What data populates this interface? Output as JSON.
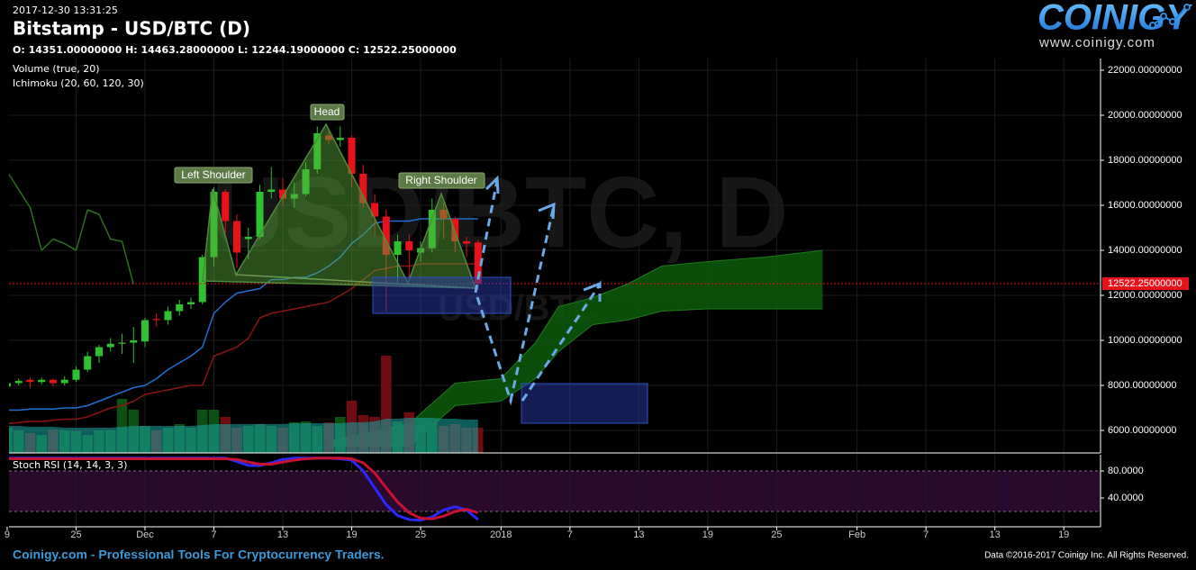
{
  "header": {
    "timestamp": "2017-12-30 13:31:25",
    "title": "Bitstamp - USD/BTC (D)",
    "ohlc": "O: 14351.00000000 H: 14463.28000000 L: 12244.19000000 C: 12522.25000000",
    "indicators": [
      "Volume (true, 20)",
      "Ichimoku (20, 60, 120, 30)"
    ],
    "watermark": "USD/BTC, D",
    "watermark_small": "USD/BTC"
  },
  "logo": {
    "name": "COINIGY",
    "url": "www.coinigy.com"
  },
  "annotations": [
    "Left Shoulder",
    "Head",
    "Right Shoulder"
  ],
  "footer": {
    "left": "Coinigy.com - Professional Tools For Cryptocurrency Traders.",
    "right": "Data ©2016-2017 Coinigy Inc. All Rights Reserved."
  },
  "chart_data": [
    {
      "type": "candlestick",
      "x": [
        0,
        1,
        2,
        3,
        4,
        5,
        6,
        7,
        8,
        9,
        10,
        11,
        12,
        13,
        14,
        15,
        16,
        17,
        18,
        19,
        20,
        21,
        22,
        23,
        24,
        25,
        26,
        27,
        28,
        29,
        30,
        31,
        32,
        33,
        34,
        35,
        36,
        37,
        38,
        39,
        40,
        41
      ],
      "open": [
        7950,
        8100,
        8250,
        8150,
        8250,
        8100,
        8250,
        8700,
        9300,
        9700,
        9850,
        9900,
        9950,
        10950,
        10900,
        11300,
        11600,
        11700,
        13700,
        16600,
        15300,
        14500,
        14600,
        16600,
        16700,
        16300,
        16500,
        17600,
        19100,
        18900,
        19000,
        17400,
        16100,
        15500,
        13800,
        14400,
        13900,
        14100,
        15800,
        15400,
        14400,
        14351
      ],
      "high": [
        8200,
        8300,
        8350,
        8350,
        8300,
        8400,
        8850,
        9500,
        9800,
        10100,
        10300,
        10600,
        11000,
        11200,
        11500,
        11800,
        11900,
        13800,
        16800,
        16700,
        15600,
        15000,
        16900,
        17700,
        17200,
        17000,
        17900,
        19500,
        19300,
        19500,
        19100,
        17800,
        16500,
        15800,
        14700,
        14700,
        14400,
        16300,
        16100,
        15500,
        14600,
        14463.28
      ],
      "low": [
        7850,
        8000,
        7900,
        8050,
        7950,
        8000,
        8150,
        8600,
        9000,
        9500,
        9400,
        9000,
        9700,
        10600,
        10700,
        11100,
        11400,
        11600,
        13300,
        14800,
        13200,
        13600,
        14500,
        16300,
        16000,
        15900,
        16400,
        17400,
        18700,
        18600,
        16800,
        15900,
        14600,
        11300,
        12500,
        12700,
        13500,
        13900,
        14500,
        13900,
        13700,
        12244.19
      ],
      "close": [
        8100,
        8200,
        8150,
        8250,
        8100,
        8250,
        8700,
        9300,
        9700,
        9850,
        9900,
        10000,
        10900,
        10900,
        11300,
        11600,
        11700,
        13700,
        16600,
        15300,
        13900,
        14600,
        16600,
        16700,
        16300,
        16500,
        17600,
        19200,
        18900,
        19000,
        17400,
        16100,
        15500,
        13800,
        14400,
        14000,
        14100,
        15800,
        15400,
        14400,
        14300,
        12522.25
      ],
      "up_color": "#2fc12f",
      "down_color": "#e8121b",
      "volume": [
        28,
        25,
        22,
        20,
        26,
        25,
        24,
        20,
        25,
        25,
        60,
        48,
        30,
        25,
        28,
        32,
        28,
        48,
        48,
        40,
        28,
        30,
        32,
        30,
        28,
        34,
        35,
        30,
        34,
        40,
        58,
        42,
        40,
        108,
        35,
        45,
        30,
        33,
        30,
        32,
        28,
        28
      ],
      "volume_up_color": "#0e5a14",
      "volume_down_color": "#7a0d14",
      "volume_ma": {
        "color": "#1aa5a5",
        "values": [
          30,
          30,
          29,
          29,
          29,
          28,
          28,
          28,
          28,
          28,
          29,
          30,
          30,
          30,
          30,
          30,
          30,
          31,
          32,
          32,
          32,
          32,
          32,
          32,
          32,
          33,
          33,
          33,
          33,
          33,
          34,
          34,
          35,
          38,
          38,
          39,
          39,
          39,
          38,
          38,
          37,
          37
        ]
      },
      "lines": [
        {
          "color": "#1f6fd1",
          "values": [
            6900,
            6900,
            6950,
            6950,
            6950,
            7000,
            7000,
            7100,
            7300,
            7500,
            7700,
            7900,
            8000,
            8300,
            8700,
            9000,
            9300,
            9700,
            11200,
            11700,
            12100,
            12200,
            12300,
            12700,
            12700,
            12800,
            12800,
            13000,
            13300,
            13700,
            14300,
            14700,
            15200,
            15300,
            15300,
            15300,
            15400,
            15400,
            15400,
            15400,
            15400,
            15400
          ]
        },
        {
          "color": "#8a1414",
          "values": [
            6300,
            6350,
            6400,
            6400,
            6450,
            6500,
            6500,
            6600,
            6800,
            7000,
            7100,
            7300,
            7600,
            7700,
            7800,
            7900,
            8000,
            8000,
            9300,
            9500,
            9700,
            10100,
            11000,
            11200,
            11300,
            11400,
            11500,
            11600,
            11700,
            12000,
            12300,
            12700,
            13100,
            13200,
            13300,
            13300,
            13400,
            13400,
            13400,
            13400,
            13400,
            13400
          ]
        },
        {
          "color": "#2d6e1f",
          "values": [
            17500,
            16700,
            15900,
            14000,
            14500,
            14300,
            14000,
            15800,
            15600,
            14500,
            14400,
            12500,
            null,
            null,
            null,
            null,
            null,
            null,
            null,
            null,
            null,
            null,
            null,
            null,
            null,
            null,
            null,
            null,
            null,
            null,
            null,
            null,
            null,
            null,
            null,
            null,
            null,
            null,
            null,
            null,
            null,
            null
          ]
        }
      ],
      "cloud": {
        "color": "#0c5c0c",
        "x": [
          28,
          35,
          39,
          43,
          46,
          48,
          51,
          54,
          57,
          61,
          66,
          71
        ],
        "upper": [
          5500,
          6300,
          8100,
          8300,
          9900,
          11500,
          11900,
          12500,
          13300,
          13500,
          13700,
          14000
        ],
        "lower": [
          5300,
          5300,
          7100,
          7300,
          8300,
          9500,
          10700,
          10900,
          11300,
          11400,
          11400,
          11400
        ]
      },
      "last_price": {
        "value": 12522.25,
        "label": "12522.25000000",
        "color": "#e8121b"
      },
      "xlim": [
        0.16,
        95.2
      ],
      "ylim": [
        5000,
        22520
      ],
      "yticks": [
        {
          "value": 6000,
          "label": "6000.00000000"
        },
        {
          "value": 8000,
          "label": "8000.00000000"
        },
        {
          "value": 10000,
          "label": "10000.00000000"
        },
        {
          "value": 12000,
          "label": "12000.00000000"
        },
        {
          "value": 14000,
          "label": "14000.00000000"
        },
        {
          "value": 16000,
          "label": "16000.00000000"
        },
        {
          "value": 18000,
          "label": "18000.00000000"
        },
        {
          "value": 20000,
          "label": "20000.00000000"
        },
        {
          "value": 22000,
          "label": "22000.00000000"
        }
      ],
      "grid": true
    },
    {
      "type": "line",
      "title": "Stoch RSI (14, 14, 3, 3)",
      "x": [
        0,
        1,
        2,
        3,
        4,
        5,
        6,
        7,
        8,
        9,
        10,
        11,
        12,
        13,
        14,
        15,
        16,
        17,
        18,
        19,
        20,
        21,
        22,
        23,
        24,
        25,
        26,
        27,
        28,
        29,
        30,
        31,
        32,
        33,
        34,
        35,
        36,
        37,
        38,
        39,
        40,
        41
      ],
      "series": [
        {
          "color": "#2a2aff",
          "values": [
            99,
            99,
            99,
            99,
            99,
            99,
            99,
            99,
            99,
            99,
            99,
            99,
            99,
            99,
            99,
            99,
            99,
            99,
            99,
            99,
            94,
            88,
            88,
            92,
            97,
            99,
            99,
            99,
            99,
            98,
            96,
            80,
            55,
            30,
            14,
            8,
            7,
            12,
            22,
            27,
            22,
            8
          ]
        },
        {
          "color": "#c81030",
          "values": [
            98,
            98,
            98,
            98,
            98,
            98,
            98,
            98,
            98,
            98,
            98,
            98,
            98,
            98,
            98,
            98,
            98,
            98,
            98,
            98,
            97,
            93,
            90,
            90,
            93,
            96,
            98,
            99,
            99,
            99,
            98,
            92,
            77,
            55,
            34,
            18,
            10,
            9,
            13,
            20,
            23,
            18
          ]
        }
      ],
      "band": [
        20,
        80
      ],
      "band_color": "#2a0a2c",
      "xlim": [
        0.16,
        95.2
      ],
      "xticks": [
        {
          "value": 0,
          "label": "9"
        },
        {
          "value": 6,
          "label": "25"
        },
        {
          "value": 12,
          "label": "Dec"
        },
        {
          "value": 18,
          "label": "7"
        },
        {
          "value": 24,
          "label": "13"
        },
        {
          "value": 30,
          "label": "19"
        },
        {
          "value": 36,
          "label": "25"
        },
        {
          "value": 43,
          "label": "2018"
        },
        {
          "value": 49,
          "label": "7"
        },
        {
          "value": 55,
          "label": "13"
        },
        {
          "value": 61,
          "label": "19"
        },
        {
          "value": 67,
          "label": "25"
        },
        {
          "value": 74,
          "label": "Feb"
        },
        {
          "value": 80,
          "label": "7"
        },
        {
          "value": 86,
          "label": "13"
        },
        {
          "value": 92,
          "label": "19"
        }
      ],
      "ylim": [
        -2.7,
        104
      ],
      "yticks": [
        {
          "value": 80,
          "label": "80.0000"
        },
        {
          "value": 40,
          "label": "40.0000"
        }
      ],
      "grid": true
    }
  ]
}
